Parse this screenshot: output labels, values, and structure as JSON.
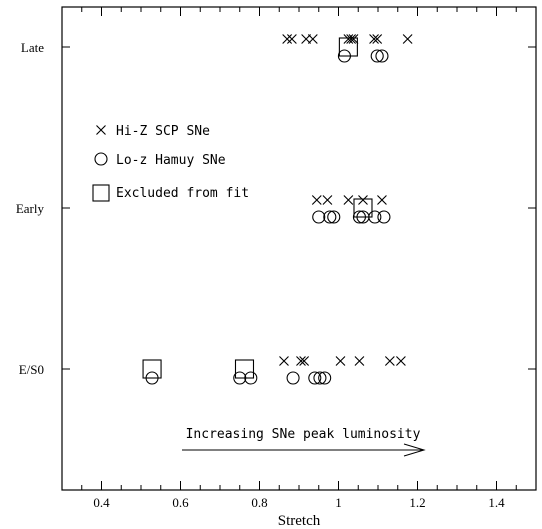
{
  "chart_data": {
    "type": "scatter",
    "xlabel": "Stretch",
    "ylabel": "",
    "xlim": [
      0.3,
      1.5
    ],
    "x_ticks": [
      "0.4",
      "0.6",
      "0.8",
      "1",
      "1.2",
      "1.4"
    ],
    "x_tick_values": [
      0.4,
      0.6,
      0.8,
      1.0,
      1.2,
      1.4
    ],
    "categories": [
      "Late",
      "Early",
      "E/S0"
    ],
    "legend_position": "left",
    "grid": false,
    "series": [
      {
        "name": "Hi-Z SCP SNe",
        "marker": "cross",
        "points": [
          {
            "x": 0.87,
            "y": "Late"
          },
          {
            "x": 0.882,
            "y": "Late"
          },
          {
            "x": 0.918,
            "y": "Late"
          },
          {
            "x": 0.935,
            "y": "Late"
          },
          {
            "x": 1.025,
            "y": "Late"
          },
          {
            "x": 1.032,
            "y": "Late"
          },
          {
            "x": 1.038,
            "y": "Late"
          },
          {
            "x": 1.09,
            "y": "Late"
          },
          {
            "x": 1.098,
            "y": "Late"
          },
          {
            "x": 1.175,
            "y": "Late"
          },
          {
            "x": 0.945,
            "y": "Early"
          },
          {
            "x": 0.972,
            "y": "Early"
          },
          {
            "x": 1.025,
            "y": "Early"
          },
          {
            "x": 1.062,
            "y": "Early"
          },
          {
            "x": 1.11,
            "y": "Early"
          },
          {
            "x": 0.862,
            "y": "E/S0"
          },
          {
            "x": 0.905,
            "y": "E/S0"
          },
          {
            "x": 0.913,
            "y": "E/S0"
          },
          {
            "x": 1.005,
            "y": "E/S0"
          },
          {
            "x": 1.053,
            "y": "E/S0"
          },
          {
            "x": 1.13,
            "y": "E/S0"
          },
          {
            "x": 1.158,
            "y": "E/S0"
          }
        ]
      },
      {
        "name": "Lo-z Hamuy SNe",
        "marker": "circle",
        "points": [
          {
            "x": 1.015,
            "y": "Late"
          },
          {
            "x": 1.098,
            "y": "Late"
          },
          {
            "x": 1.11,
            "y": "Late"
          },
          {
            "x": 0.95,
            "y": "Early"
          },
          {
            "x": 0.978,
            "y": "Early"
          },
          {
            "x": 0.988,
            "y": "Early"
          },
          {
            "x": 1.053,
            "y": "Early"
          },
          {
            "x": 1.062,
            "y": "Early"
          },
          {
            "x": 1.092,
            "y": "Early"
          },
          {
            "x": 1.115,
            "y": "Early"
          },
          {
            "x": 0.528,
            "y": "E/S0"
          },
          {
            "x": 0.75,
            "y": "E/S0"
          },
          {
            "x": 0.778,
            "y": "E/S0"
          },
          {
            "x": 0.885,
            "y": "E/S0"
          },
          {
            "x": 0.94,
            "y": "E/S0"
          },
          {
            "x": 0.953,
            "y": "E/S0"
          },
          {
            "x": 0.965,
            "y": "E/S0"
          }
        ]
      },
      {
        "name": "Excluded from fit",
        "marker": "square",
        "points": [
          {
            "x": 1.025,
            "y": "Late"
          },
          {
            "x": 1.062,
            "y": "Early"
          },
          {
            "x": 0.528,
            "y": "E/S0"
          },
          {
            "x": 0.762,
            "y": "E/S0"
          }
        ]
      }
    ],
    "annotation": "Increasing SNe peak luminosity"
  }
}
